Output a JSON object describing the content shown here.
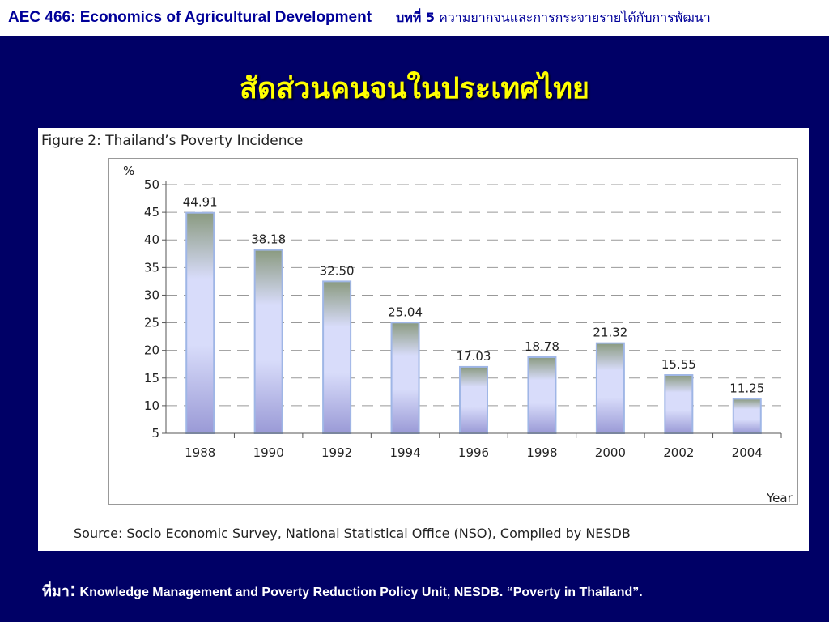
{
  "header": {
    "course": "AEC 466: Economics of Agricultural Development",
    "chapter_no": "บทที่ 5",
    "chapter_title": "ความยากจนและการกระจายรายได้กับการพัฒนา"
  },
  "slide_title": "สัดส่วนคนจนในประเทศไทย",
  "figure": {
    "title": "Figure 2: Thailand’s Poverty Incidence",
    "source": "Source: Socio Economic Survey, National Statistical Office (NSO), Compiled by NESDB"
  },
  "chart_data": {
    "type": "bar",
    "title": "Figure 2: Thailand’s Poverty Incidence",
    "xlabel": "Year",
    "ylabel": "%",
    "categories": [
      "1988",
      "1990",
      "1992",
      "1994",
      "1996",
      "1998",
      "2000",
      "2002",
      "2004"
    ],
    "values": [
      44.91,
      38.18,
      32.5,
      25.04,
      17.03,
      18.78,
      21.32,
      15.55,
      11.25
    ],
    "value_labels": [
      "44.91",
      "38.18",
      "32.50",
      "25.04",
      "17.03",
      "18.78",
      "21.32",
      "15.55",
      "11.25"
    ],
    "yticks": [
      "5",
      "10",
      "15",
      "20",
      "25",
      "30",
      "35",
      "40",
      "45",
      "50"
    ],
    "ylim": [
      5,
      50
    ],
    "grid": true,
    "bar_colors": {
      "top": "#8a9a80",
      "mid": "#d8dcfa",
      "bottom": "#9a9ad6",
      "edge": "#9fb6e6"
    },
    "grid_color": "#999999"
  },
  "footer": {
    "label": "ที่มา",
    "colon": ":",
    "text": "Knowledge Management and Poverty Reduction Policy Unit, NESDB. “Poverty in Thailand”."
  }
}
